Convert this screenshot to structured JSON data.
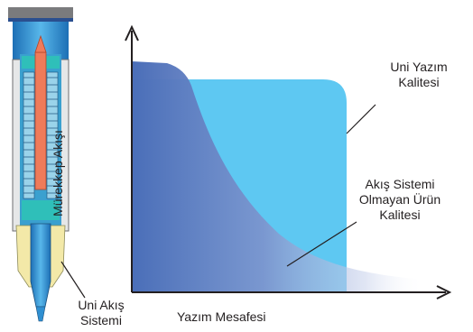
{
  "diagram": {
    "axes": {
      "y_label": "Mürekkep Akışı",
      "x_label": "Yazım Mesafesi"
    },
    "callouts": {
      "uni_quality": [
        "Uni Yazım",
        "Kalitesi"
      ],
      "other_quality": [
        "Akış Sistemi",
        "Olmayan Ürün",
        "Kalitesi"
      ],
      "pen_system": [
        "Uni Akış",
        "Sistemi"
      ]
    },
    "colors": {
      "uni_curve": "#5ec8f2",
      "other_curve_dark": "#4a6eb8",
      "pen_cap": "#7a7b7d",
      "pen_barrel_blue": "#2f8fd1",
      "pen_core": "#ef7b5a",
      "pen_teal": "#2fbfb9",
      "pen_yellow": "#f3e9a8",
      "axis": "#231f20"
    }
  }
}
